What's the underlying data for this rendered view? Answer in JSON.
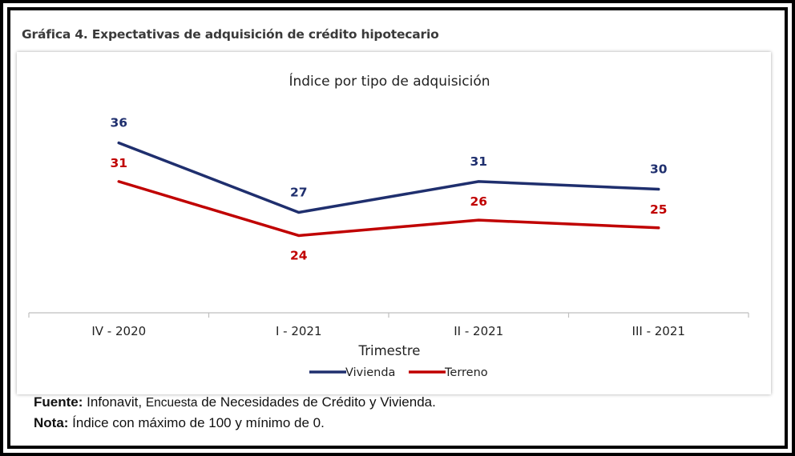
{
  "heading": "Gráfica 4. Expectativas de adquisición de crédito hipotecario",
  "chart_data": {
    "type": "line",
    "title": "Índice por tipo de adquisición",
    "xlabel": "Trimestre",
    "ylabel": "",
    "categories": [
      "IV - 2020",
      "I - 2021",
      "II - 2021",
      "III - 2021"
    ],
    "series": [
      {
        "name": "Vivienda",
        "values": [
          36,
          27,
          31,
          30
        ],
        "color": "#1f2f6e"
      },
      {
        "name": "Terreno",
        "values": [
          31,
          24,
          26,
          25
        ],
        "color": "#c00000"
      }
    ],
    "ylim": [
      14,
      40
    ],
    "grid": false,
    "legend": "bottom"
  },
  "notes": {
    "fuente_label": "Fuente:",
    "fuente_text_a": " Infonavit, ",
    "fuente_text_b": "Encuesta",
    "fuente_text_c": " de Necesidades de Crédito y Vivienda.",
    "nota_label": "Nota:",
    "nota_text": " Índice con máximo de 100 y mínimo  de 0."
  }
}
